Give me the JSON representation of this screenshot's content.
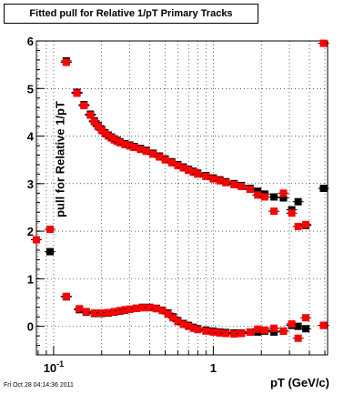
{
  "title": "Fitted pull for Relative 1/pT  Primary Tracks",
  "ylabel": "pull for Relative 1/pT",
  "xlabel": "pT (GeV/c)",
  "timestamp": "Fri Oct 28 04:14:36 2011",
  "chart_data": {
    "type": "scatter",
    "title": "Fitted pull for Relative 1/pT  Primary Tracks",
    "xlabel": "pT (GeV/c)",
    "ylabel": "pull for Relative 1/pT",
    "xscale": "log",
    "xlim": [
      0.078,
      5.2
    ],
    "ylim": [
      -0.6,
      6.0
    ],
    "y_ticks": [
      0,
      1,
      2,
      3,
      4,
      5,
      6
    ],
    "x_tick_labels": [
      {
        "value": 0.1,
        "label": "10",
        "sup": "-1"
      },
      {
        "value": 1,
        "label": "1",
        "sup": ""
      }
    ],
    "grid": true,
    "colors": {
      "red": "#ff0000",
      "black": "#000000"
    },
    "series": [
      {
        "color": "#000000",
        "marker": "square",
        "points": [
          {
            "x": 0.12,
            "y": 5.58
          },
          {
            "x": 0.14,
            "y": 4.92
          },
          {
            "x": 0.155,
            "y": 4.66
          },
          {
            "x": 0.17,
            "y": 4.46
          },
          {
            "x": 0.18,
            "y": 4.32
          },
          {
            "x": 0.19,
            "y": 4.22
          },
          {
            "x": 0.2,
            "y": 4.14
          },
          {
            "x": 0.21,
            "y": 4.07
          },
          {
            "x": 0.22,
            "y": 4.02
          },
          {
            "x": 0.23,
            "y": 3.98
          },
          {
            "x": 0.24,
            "y": 3.94
          },
          {
            "x": 0.25,
            "y": 3.91
          },
          {
            "x": 0.26,
            "y": 3.88
          },
          {
            "x": 0.28,
            "y": 3.84
          },
          {
            "x": 0.3,
            "y": 3.81
          },
          {
            "x": 0.32,
            "y": 3.78
          },
          {
            "x": 0.35,
            "y": 3.74
          },
          {
            "x": 0.38,
            "y": 3.7
          },
          {
            "x": 0.42,
            "y": 3.64
          },
          {
            "x": 0.46,
            "y": 3.58
          },
          {
            "x": 0.5,
            "y": 3.52
          },
          {
            "x": 0.55,
            "y": 3.46
          },
          {
            "x": 0.6,
            "y": 3.4
          },
          {
            "x": 0.65,
            "y": 3.35
          },
          {
            "x": 0.7,
            "y": 3.3
          },
          {
            "x": 0.75,
            "y": 3.26
          },
          {
            "x": 0.8,
            "y": 3.22
          },
          {
            "x": 0.9,
            "y": 3.17
          },
          {
            "x": 1.0,
            "y": 3.12
          },
          {
            "x": 1.1,
            "y": 3.08
          },
          {
            "x": 1.2,
            "y": 3.04
          },
          {
            "x": 1.35,
            "y": 3.0
          },
          {
            "x": 1.5,
            "y": 2.96
          },
          {
            "x": 1.7,
            "y": 2.9
          },
          {
            "x": 1.9,
            "y": 2.84
          },
          {
            "x": 2.1,
            "y": 2.78
          },
          {
            "x": 2.4,
            "y": 2.72
          },
          {
            "x": 2.75,
            "y": 2.7
          },
          {
            "x": 3.1,
            "y": 2.45
          },
          {
            "x": 3.4,
            "y": 2.62
          },
          {
            "x": 3.8,
            "y": 2.12
          },
          {
            "x": 4.9,
            "y": 2.9
          },
          {
            "x": 0.095,
            "y": 1.57
          },
          {
            "x": 0.12,
            "y": 0.62
          },
          {
            "x": 0.145,
            "y": 0.35
          },
          {
            "x": 0.16,
            "y": 0.3
          },
          {
            "x": 0.18,
            "y": 0.27
          },
          {
            "x": 0.2,
            "y": 0.27
          },
          {
            "x": 0.22,
            "y": 0.28
          },
          {
            "x": 0.24,
            "y": 0.3
          },
          {
            "x": 0.26,
            "y": 0.32
          },
          {
            "x": 0.28,
            "y": 0.34
          },
          {
            "x": 0.3,
            "y": 0.36
          },
          {
            "x": 0.33,
            "y": 0.38
          },
          {
            "x": 0.36,
            "y": 0.4
          },
          {
            "x": 0.4,
            "y": 0.4
          },
          {
            "x": 0.44,
            "y": 0.38
          },
          {
            "x": 0.48,
            "y": 0.34
          },
          {
            "x": 0.52,
            "y": 0.28
          },
          {
            "x": 0.56,
            "y": 0.2
          },
          {
            "x": 0.6,
            "y": 0.12
          },
          {
            "x": 0.65,
            "y": 0.06
          },
          {
            "x": 0.7,
            "y": 0.02
          },
          {
            "x": 0.75,
            "y": -0.02
          },
          {
            "x": 0.8,
            "y": -0.05
          },
          {
            "x": 0.9,
            "y": -0.08
          },
          {
            "x": 1.0,
            "y": -0.1
          },
          {
            "x": 1.1,
            "y": -0.12
          },
          {
            "x": 1.2,
            "y": -0.13
          },
          {
            "x": 1.35,
            "y": -0.14
          },
          {
            "x": 1.5,
            "y": -0.14
          },
          {
            "x": 1.7,
            "y": -0.12
          },
          {
            "x": 1.9,
            "y": -0.12
          },
          {
            "x": 2.1,
            "y": -0.1
          },
          {
            "x": 2.4,
            "y": -0.12
          },
          {
            "x": 2.75,
            "y": -0.1
          },
          {
            "x": 3.1,
            "y": 0.02
          },
          {
            "x": 3.4,
            "y": 0.0
          },
          {
            "x": 3.8,
            "y": -0.05
          },
          {
            "x": 4.9,
            "y": 0.02
          }
        ]
      },
      {
        "color": "#ff0000",
        "marker": "square",
        "points": [
          {
            "x": 0.12,
            "y": 5.55
          },
          {
            "x": 0.14,
            "y": 4.9
          },
          {
            "x": 0.155,
            "y": 4.64
          },
          {
            "x": 0.17,
            "y": 4.44
          },
          {
            "x": 0.18,
            "y": 4.3
          },
          {
            "x": 0.19,
            "y": 4.2
          },
          {
            "x": 0.2,
            "y": 4.12
          },
          {
            "x": 0.21,
            "y": 4.05
          },
          {
            "x": 0.22,
            "y": 4.0
          },
          {
            "x": 0.23,
            "y": 3.96
          },
          {
            "x": 0.24,
            "y": 3.92
          },
          {
            "x": 0.25,
            "y": 3.89
          },
          {
            "x": 0.26,
            "y": 3.86
          },
          {
            "x": 0.28,
            "y": 3.82
          },
          {
            "x": 0.3,
            "y": 3.79
          },
          {
            "x": 0.32,
            "y": 3.76
          },
          {
            "x": 0.35,
            "y": 3.72
          },
          {
            "x": 0.38,
            "y": 3.68
          },
          {
            "x": 0.42,
            "y": 3.62
          },
          {
            "x": 0.46,
            "y": 3.56
          },
          {
            "x": 0.5,
            "y": 3.5
          },
          {
            "x": 0.55,
            "y": 3.44
          },
          {
            "x": 0.6,
            "y": 3.38
          },
          {
            "x": 0.65,
            "y": 3.33
          },
          {
            "x": 0.7,
            "y": 3.28
          },
          {
            "x": 0.75,
            "y": 3.24
          },
          {
            "x": 0.8,
            "y": 3.2
          },
          {
            "x": 0.9,
            "y": 3.15
          },
          {
            "x": 1.0,
            "y": 3.1
          },
          {
            "x": 1.1,
            "y": 3.06
          },
          {
            "x": 1.2,
            "y": 3.02
          },
          {
            "x": 1.35,
            "y": 2.98
          },
          {
            "x": 1.5,
            "y": 2.94
          },
          {
            "x": 1.7,
            "y": 2.88
          },
          {
            "x": 1.9,
            "y": 2.76
          },
          {
            "x": 2.1,
            "y": 2.72
          },
          {
            "x": 2.4,
            "y": 2.42
          },
          {
            "x": 2.75,
            "y": 2.8
          },
          {
            "x": 3.1,
            "y": 2.38
          },
          {
            "x": 3.4,
            "y": 2.1
          },
          {
            "x": 3.8,
            "y": 2.14
          },
          {
            "x": 4.9,
            "y": 5.95
          },
          {
            "x": 0.078,
            "y": 1.82
          },
          {
            "x": 0.095,
            "y": 2.04
          },
          {
            "x": 0.12,
            "y": 0.63
          },
          {
            "x": 0.145,
            "y": 0.37
          },
          {
            "x": 0.16,
            "y": 0.31
          },
          {
            "x": 0.18,
            "y": 0.28
          },
          {
            "x": 0.2,
            "y": 0.28
          },
          {
            "x": 0.22,
            "y": 0.29
          },
          {
            "x": 0.24,
            "y": 0.31
          },
          {
            "x": 0.26,
            "y": 0.33
          },
          {
            "x": 0.28,
            "y": 0.35
          },
          {
            "x": 0.3,
            "y": 0.36
          },
          {
            "x": 0.33,
            "y": 0.38
          },
          {
            "x": 0.36,
            "y": 0.39
          },
          {
            "x": 0.4,
            "y": 0.39
          },
          {
            "x": 0.44,
            "y": 0.37
          },
          {
            "x": 0.48,
            "y": 0.33
          },
          {
            "x": 0.52,
            "y": 0.26
          },
          {
            "x": 0.56,
            "y": 0.18
          },
          {
            "x": 0.6,
            "y": 0.1
          },
          {
            "x": 0.65,
            "y": 0.04
          },
          {
            "x": 0.7,
            "y": 0.0
          },
          {
            "x": 0.75,
            "y": -0.04
          },
          {
            "x": 0.8,
            "y": -0.07
          },
          {
            "x": 0.9,
            "y": -0.1
          },
          {
            "x": 1.0,
            "y": -0.12
          },
          {
            "x": 1.1,
            "y": -0.14
          },
          {
            "x": 1.2,
            "y": -0.15
          },
          {
            "x": 1.35,
            "y": -0.16
          },
          {
            "x": 1.5,
            "y": -0.15
          },
          {
            "x": 1.7,
            "y": -0.12
          },
          {
            "x": 1.9,
            "y": -0.06
          },
          {
            "x": 2.1,
            "y": -0.08
          },
          {
            "x": 2.4,
            "y": -0.04
          },
          {
            "x": 2.75,
            "y": -0.1
          },
          {
            "x": 3.1,
            "y": 0.05
          },
          {
            "x": 3.4,
            "y": -0.25
          },
          {
            "x": 3.8,
            "y": 0.18
          },
          {
            "x": 4.9,
            "y": 0.02
          }
        ]
      }
    ]
  }
}
